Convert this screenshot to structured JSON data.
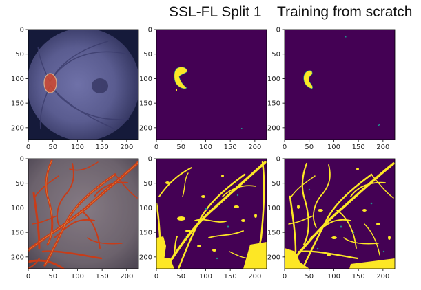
{
  "titles": {
    "ssl_fl_split": "SSL-FL Split 1",
    "training_from_scratch": "Training from scratch"
  },
  "axes": {
    "x_ticks": [
      "0",
      "50",
      "100",
      "150",
      "200"
    ],
    "y_ticks": [
      "0",
      "50",
      "100",
      "150",
      "200"
    ],
    "xlim": [
      0,
      224
    ],
    "ylim": [
      224,
      0
    ]
  },
  "colors": {
    "mask_background": "#440154",
    "mask_foreground": "#fde725",
    "mask_edge": "#21908d",
    "optic_disc_overlay": "#d9482a",
    "vessel_overlay": "#c83c18",
    "fundus_top_background": "#4b4f7c",
    "fundus_bottom_background": "#7a6b74"
  },
  "panels": [
    {
      "row": 0,
      "col": 0,
      "kind": "fundus overlay",
      "name": "optic-disc-overlay"
    },
    {
      "row": 0,
      "col": 1,
      "kind": "mask",
      "name": "optic-disc-mask-ssl-fl"
    },
    {
      "row": 0,
      "col": 2,
      "kind": "mask",
      "name": "optic-disc-mask-scratch"
    },
    {
      "row": 1,
      "col": 0,
      "kind": "fundus overlay",
      "name": "vessel-overlay"
    },
    {
      "row": 1,
      "col": 1,
      "kind": "mask",
      "name": "vessel-mask-ssl-fl"
    },
    {
      "row": 1,
      "col": 2,
      "kind": "mask",
      "name": "vessel-mask-scratch"
    }
  ]
}
